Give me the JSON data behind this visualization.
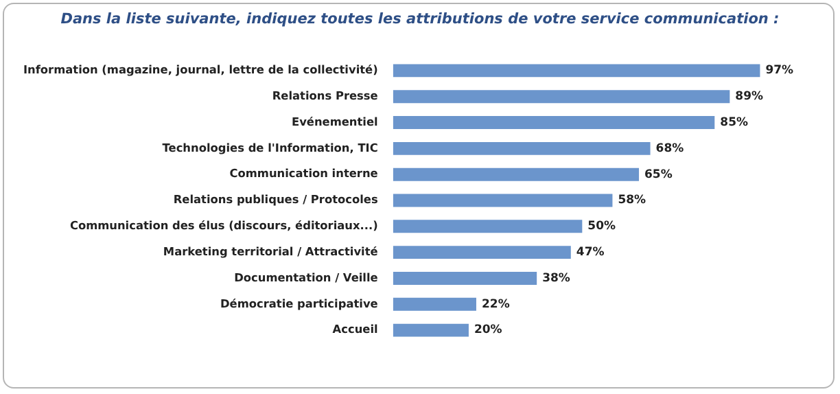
{
  "chart_data": {
    "type": "bar",
    "orientation": "horizontal",
    "title": "Dans la liste suivante, indiquez toutes les attributions de votre service communication :",
    "categories": [
      "Information (magazine, journal, lettre de la collectivité)",
      "Relations Presse",
      "Evénementiel",
      "Technologies de l'Information, TIC",
      "Communication interne",
      "Relations publiques / Protocoles",
      "Communication des élus (discours, éditoriaux...)",
      "Marketing territorial / Attractivité",
      "Documentation / Veille",
      "Démocratie participative",
      "Accueil"
    ],
    "values": [
      97,
      89,
      85,
      68,
      65,
      58,
      50,
      47,
      38,
      22,
      20
    ],
    "value_labels": [
      "97%",
      "89%",
      "85%",
      "68%",
      "65%",
      "58%",
      "50%",
      "47%",
      "38%",
      "22%",
      "20%"
    ],
    "color": "#6b95cc",
    "tick_labels": "y"
  }
}
